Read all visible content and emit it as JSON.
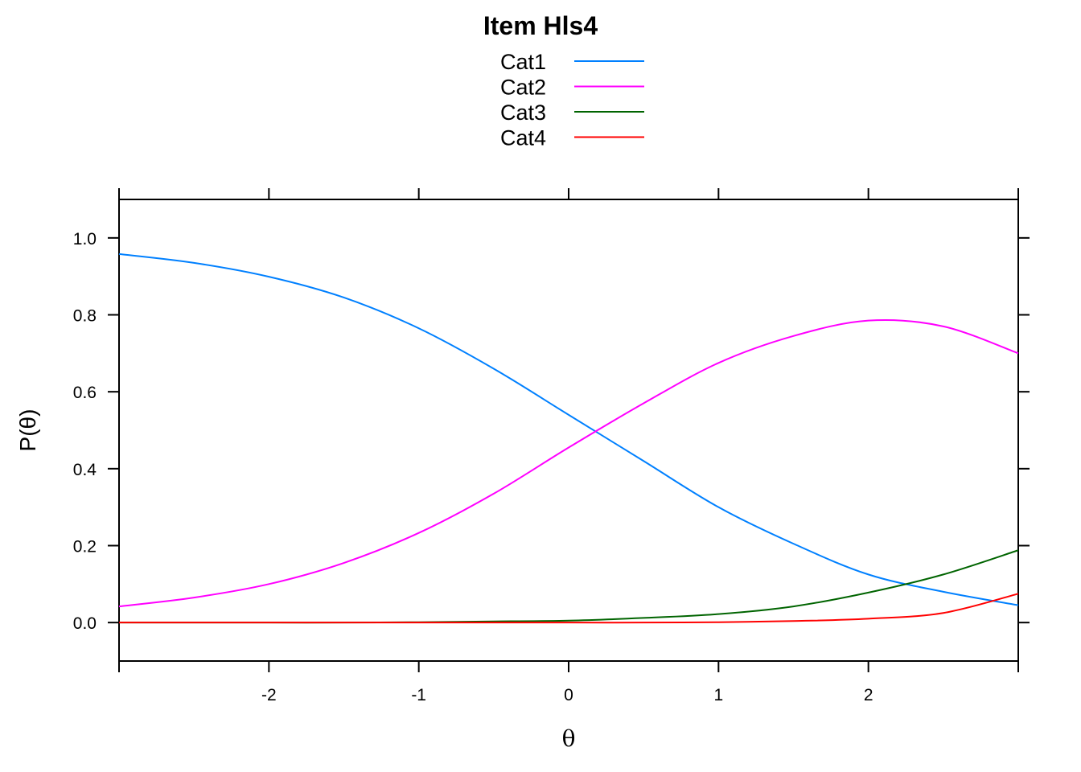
{
  "chart_data": {
    "type": "line",
    "title": "Item Hls4",
    "xlabel": "θ",
    "ylabel": "P(θ)",
    "xlim": [
      -3,
      3
    ],
    "ylim": [
      -0.1,
      1.1
    ],
    "x_ticks": [
      -2,
      -1,
      0,
      1,
      2
    ],
    "x_tick_labels": [
      "-2",
      "-1",
      "0",
      "1",
      "2"
    ],
    "y_ticks": [
      0.0,
      0.2,
      0.4,
      0.6,
      0.8,
      1.0
    ],
    "y_tick_labels": [
      "0.0",
      "0.2",
      "0.4",
      "0.6",
      "0.8",
      "1.0"
    ],
    "grid": false,
    "legend_position": "top-center",
    "x": [
      -3,
      -2.5,
      -2,
      -1.5,
      -1,
      -0.5,
      0,
      0.5,
      1,
      1.5,
      2,
      2.5,
      3
    ],
    "series": [
      {
        "name": "Cat1",
        "color": "#0080ff",
        "values": [
          0.958,
          0.935,
          0.899,
          0.845,
          0.765,
          0.66,
          0.54,
          0.42,
          0.3,
          0.205,
          0.125,
          0.08,
          0.045
        ]
      },
      {
        "name": "Cat2",
        "color": "#ff00ff",
        "values": [
          0.042,
          0.065,
          0.1,
          0.155,
          0.233,
          0.335,
          0.455,
          0.57,
          0.675,
          0.745,
          0.785,
          0.77,
          0.7
        ]
      },
      {
        "name": "Cat3",
        "color": "#006400",
        "values": [
          0.0,
          0.0,
          0.0,
          0.0,
          0.001,
          0.003,
          0.005,
          0.012,
          0.022,
          0.042,
          0.078,
          0.125,
          0.188
        ]
      },
      {
        "name": "Cat4",
        "color": "#ff0000",
        "values": [
          0.0,
          0.0,
          0.0,
          0.0,
          0.0,
          0.0,
          0.0,
          0.0,
          0.001,
          0.004,
          0.01,
          0.025,
          0.075
        ]
      }
    ]
  }
}
